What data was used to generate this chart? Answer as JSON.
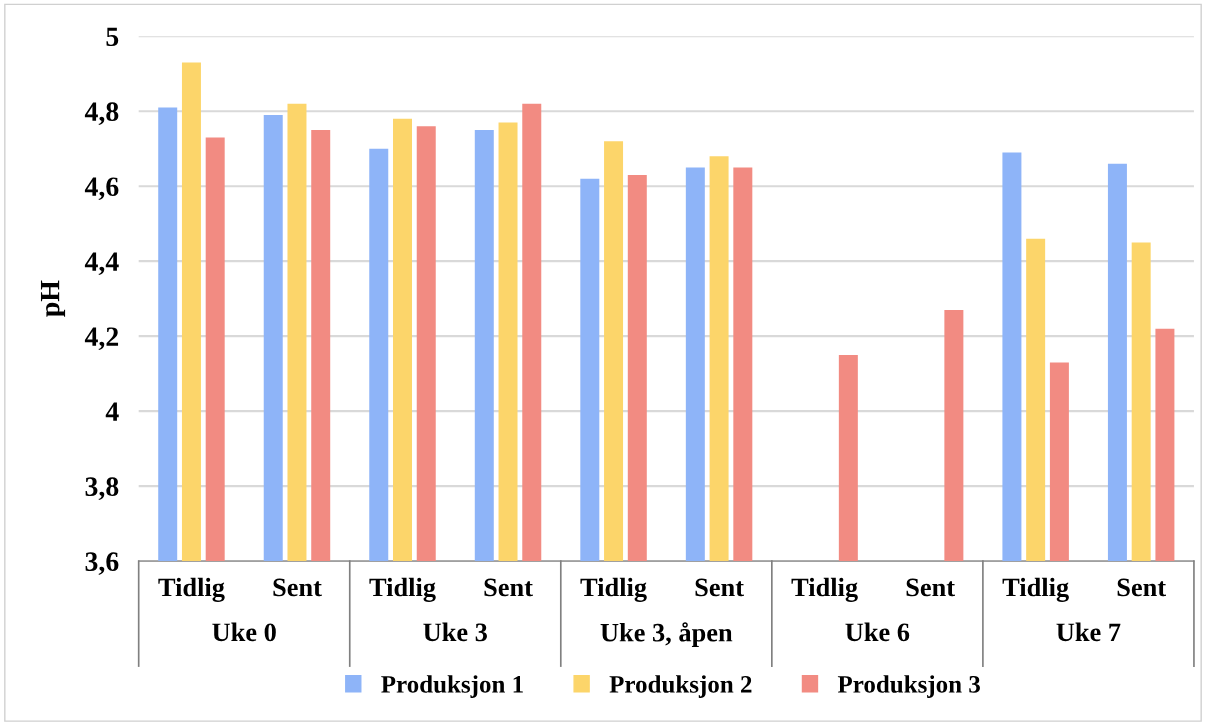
{
  "chart_data": {
    "type": "bar",
    "ylabel": "pH",
    "categories": [
      "Tidlig",
      "Sent",
      "Tidlig",
      "Sent",
      "Tidlig",
      "Sent",
      "Tidlig",
      "Sent",
      "Tidlig",
      "Sent"
    ],
    "annotations": [
      "Uke 0",
      "Uke 3",
      "Uke 3, åpen",
      "Uke 6",
      "Uke 7"
    ],
    "series": [
      {
        "name": "Produksjon 1",
        "color": "#8eb4f8",
        "values": [
          4.81,
          4.79,
          4.7,
          4.75,
          4.62,
          4.65,
          null,
          null,
          4.69,
          4.66
        ]
      },
      {
        "name": "Produksjon 2",
        "color": "#fcd56a",
        "values": [
          4.93,
          4.82,
          4.78,
          4.77,
          4.72,
          4.68,
          null,
          null,
          4.46,
          4.45
        ]
      },
      {
        "name": "Produksjon 3",
        "color": "#f28b82",
        "values": [
          4.73,
          4.75,
          4.76,
          4.82,
          4.63,
          4.65,
          4.15,
          4.27,
          4.13,
          4.22
        ]
      }
    ],
    "ylim": [
      3.6,
      5
    ],
    "yticks": [
      {
        "value": 3.6,
        "label": "3,6"
      },
      {
        "value": 3.8,
        "label": "3,8"
      },
      4,
      {
        "value": 4.2,
        "label": "4,2"
      },
      {
        "value": 4.4,
        "label": "4,4"
      },
      {
        "value": 4.6,
        "label": "4,6"
      },
      {
        "value": 4.8,
        "label": "4,8"
      },
      5
    ],
    "grid": "y",
    "legend": "bottom"
  }
}
